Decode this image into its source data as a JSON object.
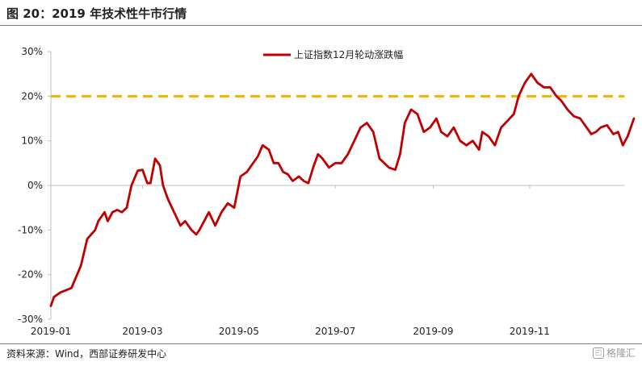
{
  "figure": {
    "title": "图 20：2019 年技术性牛市行情",
    "source": "资料来源：Wind，西部证券研发中心",
    "watermark": "格隆汇",
    "watermark_icon": "glh-logo-icon"
  },
  "chart_data": {
    "type": "line",
    "title": "",
    "xlabel": "",
    "ylabel": "",
    "ylim": [
      -0.3,
      0.3
    ],
    "yticks": [
      -0.3,
      -0.2,
      -0.1,
      0,
      0.1,
      0.2,
      0.3
    ],
    "ytick_labels": [
      "-30%",
      "-20%",
      "-10%",
      "0%",
      "10%",
      "20%",
      "30%"
    ],
    "xticks": [
      "2019-01-02",
      "2019-03-01",
      "2019-05-01",
      "2019-07-01",
      "2019-09-01",
      "2019-11-01"
    ],
    "xtick_labels": [
      "2019-01",
      "2019-03",
      "2019-05",
      "2019-07",
      "2019-09",
      "2019-11"
    ],
    "xlim": [
      "2019-01-02",
      "2020-01-06"
    ],
    "legend_position": "top",
    "grid": false,
    "colors": {
      "line": "#c00000",
      "reference": "#f0b400",
      "axis": "#bfbfbf"
    },
    "series": [
      {
        "name": "上证指数12月轮动涨跌幅",
        "x": [
          "2019-01-02",
          "2019-01-04",
          "2019-01-08",
          "2019-01-15",
          "2019-01-21",
          "2019-01-25",
          "2019-01-30",
          "2019-02-01",
          "2019-02-05",
          "2019-02-07",
          "2019-02-10",
          "2019-02-13",
          "2019-02-16",
          "2019-02-19",
          "2019-02-22",
          "2019-02-26",
          "2019-03-01",
          "2019-03-04",
          "2019-03-06",
          "2019-03-09",
          "2019-03-12",
          "2019-03-14",
          "2019-03-17",
          "2019-03-21",
          "2019-03-25",
          "2019-03-28",
          "2019-04-01",
          "2019-04-04",
          "2019-04-06",
          "2019-04-09",
          "2019-04-12",
          "2019-04-16",
          "2019-04-20",
          "2019-04-24",
          "2019-04-28",
          "2019-05-02",
          "2019-05-06",
          "2019-05-09",
          "2019-05-13",
          "2019-05-16",
          "2019-05-20",
          "2019-05-23",
          "2019-05-26",
          "2019-05-29",
          "2019-06-01",
          "2019-06-04",
          "2019-06-08",
          "2019-06-11",
          "2019-06-14",
          "2019-06-17",
          "2019-06-20",
          "2019-06-23",
          "2019-06-27",
          "2019-07-01",
          "2019-07-05",
          "2019-07-09",
          "2019-07-13",
          "2019-07-17",
          "2019-07-21",
          "2019-07-25",
          "2019-07-29",
          "2019-08-01",
          "2019-08-04",
          "2019-08-08",
          "2019-08-11",
          "2019-08-14",
          "2019-08-18",
          "2019-08-22",
          "2019-08-26",
          "2019-08-30",
          "2019-09-03",
          "2019-09-06",
          "2019-09-10",
          "2019-09-14",
          "2019-09-18",
          "2019-09-22",
          "2019-09-26",
          "2019-09-30",
          "2019-10-02",
          "2019-10-06",
          "2019-10-10",
          "2019-10-14",
          "2019-10-18",
          "2019-10-22",
          "2019-10-25",
          "2019-10-29",
          "2019-11-02",
          "2019-11-06",
          "2019-11-10",
          "2019-11-14",
          "2019-11-18",
          "2019-11-21",
          "2019-11-25",
          "2019-11-29",
          "2019-12-03",
          "2019-12-07",
          "2019-12-10",
          "2019-12-13",
          "2019-12-16",
          "2019-12-20",
          "2019-12-24",
          "2019-12-27",
          "2019-12-30",
          "2020-01-02",
          "2020-01-06"
        ],
        "values": [
          -0.27,
          -0.25,
          -0.24,
          -0.23,
          -0.18,
          -0.12,
          -0.1,
          -0.08,
          -0.06,
          -0.08,
          -0.06,
          -0.055,
          -0.06,
          -0.05,
          0.0,
          0.033,
          0.035,
          0.005,
          0.005,
          0.06,
          0.045,
          0.0,
          -0.03,
          -0.06,
          -0.09,
          -0.08,
          -0.1,
          -0.11,
          -0.1,
          -0.08,
          -0.06,
          -0.09,
          -0.06,
          -0.04,
          -0.05,
          0.02,
          0.03,
          0.045,
          0.065,
          0.09,
          0.08,
          0.05,
          0.05,
          0.03,
          0.025,
          0.01,
          0.02,
          0.01,
          0.005,
          0.04,
          0.07,
          0.06,
          0.04,
          0.05,
          0.05,
          0.07,
          0.1,
          0.13,
          0.14,
          0.12,
          0.06,
          0.05,
          0.04,
          0.035,
          0.07,
          0.14,
          0.17,
          0.16,
          0.12,
          0.13,
          0.15,
          0.12,
          0.11,
          0.13,
          0.1,
          0.09,
          0.1,
          0.08,
          0.12,
          0.11,
          0.09,
          0.13,
          0.145,
          0.16,
          0.2,
          0.23,
          0.25,
          0.23,
          0.22,
          0.22,
          0.2,
          0.19,
          0.17,
          0.155,
          0.15,
          0.13,
          0.115,
          0.12,
          0.13,
          0.135,
          0.115,
          0.12,
          0.09,
          0.11,
          0.15
        ]
      }
    ],
    "reference_line": {
      "y": 0.2,
      "style": "dashed"
    }
  }
}
